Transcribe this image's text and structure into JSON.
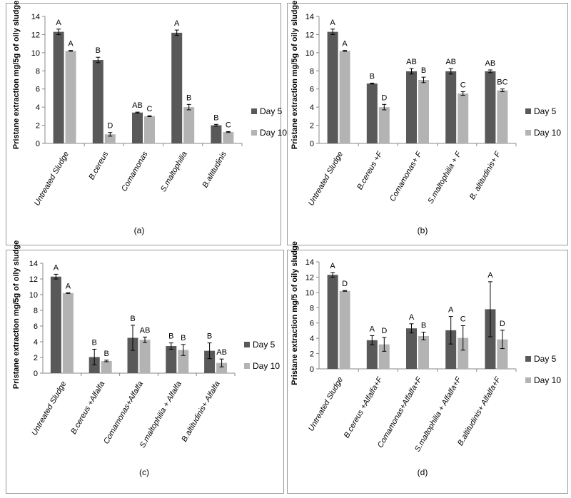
{
  "colors": {
    "day5": "#595959",
    "day10": "#b3b3b3",
    "axis": "#888888",
    "error": "#000000"
  },
  "chart_data": [
    {
      "type": "bar",
      "panel_label": "(a)",
      "ylabel": "Pristane extraction mg/5g of oily sludge",
      "ylim": [
        0,
        14
      ],
      "yticks": [
        0,
        2,
        4,
        6,
        8,
        10,
        12,
        14
      ],
      "categories": [
        "Untreated Sludge",
        "B.cereus",
        "Comamonas",
        "S.maltophilia",
        "B.altitudinis"
      ],
      "legend": [
        "Day 5",
        "Day 10"
      ],
      "series": [
        {
          "name": "Day 5",
          "values": [
            12.3,
            9.2,
            3.4,
            12.2,
            2.0
          ],
          "errors": [
            0.3,
            0.3,
            0.05,
            0.3,
            0.1
          ],
          "letters": [
            "A",
            "B",
            "AB",
            "A",
            "B"
          ]
        },
        {
          "name": "Day 10",
          "values": [
            10.2,
            1.0,
            3.0,
            4.0,
            1.25
          ],
          "errors": [
            0.05,
            0.2,
            0.05,
            0.3,
            0.05
          ],
          "letters": [
            "A",
            "D",
            "C",
            "B",
            "C"
          ]
        }
      ]
    },
    {
      "type": "bar",
      "panel_label": "(b)",
      "ylabel": "Pristane extraction mg/5g of oily sludge",
      "ylim": [
        0,
        14
      ],
      "yticks": [
        0,
        2,
        4,
        6,
        8,
        10,
        12,
        14
      ],
      "categories": [
        "Untreated Sludge",
        "B.cereus +F",
        "Comamonas+ F",
        "S.maltophilia + F",
        "B. altitudinis+ F"
      ],
      "legend": [
        "Day 5",
        "Day 10"
      ],
      "series": [
        {
          "name": "Day 5",
          "values": [
            12.3,
            6.6,
            7.95,
            7.95,
            7.95
          ],
          "errors": [
            0.3,
            0.05,
            0.3,
            0.3,
            0.15
          ],
          "letters": [
            "A",
            "B",
            "AB",
            "AB",
            "AB"
          ]
        },
        {
          "name": "Day 10",
          "values": [
            10.2,
            4.0,
            7.0,
            5.5,
            5.85
          ],
          "errors": [
            0.05,
            0.3,
            0.3,
            0.2,
            0.15
          ],
          "letters": [
            "A",
            "D",
            "B",
            "C",
            "BC"
          ]
        }
      ]
    },
    {
      "type": "bar",
      "panel_label": "(c)",
      "ylabel": "Pristane extraction mg/5g of oily sludge",
      "ylim": [
        0,
        14
      ],
      "yticks": [
        0,
        2,
        4,
        6,
        8,
        10,
        12,
        14
      ],
      "categories": [
        "Untreated Sludge",
        "B.cereus +Alfalfa",
        "Comamonas+Alfalfa",
        "S.maltophilia + Alfalfa",
        "B.altitudinis+ Alfalfa"
      ],
      "legend": [
        "Day 5",
        "Day 10"
      ],
      "series": [
        {
          "name": "Day 5",
          "values": [
            12.3,
            2.05,
            4.5,
            3.45,
            2.85
          ],
          "errors": [
            0.3,
            1.0,
            1.6,
            0.4,
            1.0
          ],
          "letters": [
            "A",
            "B",
            "B",
            "B",
            "B"
          ]
        },
        {
          "name": "Day 10",
          "values": [
            10.2,
            1.55,
            4.25,
            2.95,
            1.3
          ],
          "errors": [
            0.05,
            0.1,
            0.35,
            0.7,
            0.5
          ],
          "letters": [
            "A",
            "B",
            "AB",
            "B",
            "AB"
          ]
        }
      ]
    },
    {
      "type": "bar",
      "panel_label": "(d)",
      "ylabel": "Pristane extraction mg/5 of oily sludge",
      "ylim": [
        0,
        14
      ],
      "yticks": [
        0,
        2,
        4,
        6,
        8,
        10,
        12,
        14
      ],
      "categories": [
        "Untreated Sludge",
        "B.cereus +Alfalfa+F",
        "Comamonas+Alfalfa+F",
        "S.maltophilia + Alfalfa+F",
        "B.altitudinis+ Alfalfa+F"
      ],
      "legend": [
        "Day 5",
        "Day 10"
      ],
      "series": [
        {
          "name": "Day 5",
          "values": [
            12.3,
            3.75,
            5.3,
            5.05,
            7.8
          ],
          "errors": [
            0.3,
            0.6,
            0.6,
            1.8,
            3.6
          ],
          "letters": [
            "A",
            "A",
            "A",
            "A",
            "A"
          ]
        },
        {
          "name": "Day 10",
          "values": [
            10.2,
            3.2,
            4.3,
            4.05,
            3.85
          ],
          "errors": [
            0.05,
            0.9,
            0.5,
            1.6,
            1.2
          ],
          "letters": [
            "D",
            "D",
            "B",
            "C",
            "D"
          ]
        }
      ]
    }
  ]
}
